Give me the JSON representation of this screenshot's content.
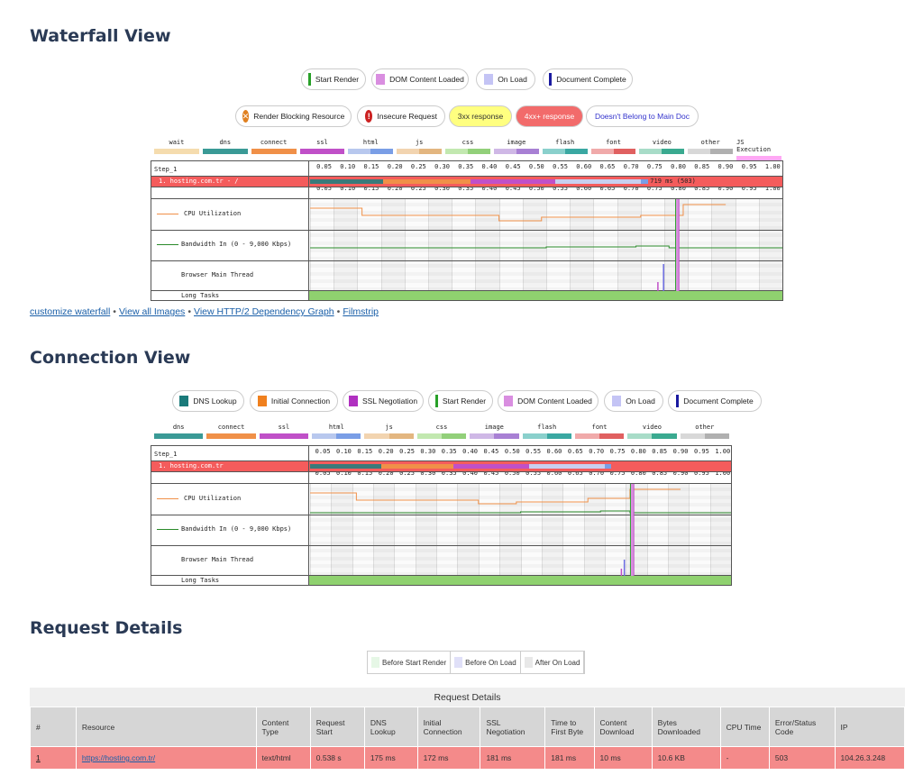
{
  "waterfall": {
    "title": "Waterfall View",
    "markers": [
      {
        "label": "Start Render",
        "color": "#28a028",
        "kind": "line"
      },
      {
        "label": "DOM Content Loaded",
        "color": "#d98ee0",
        "kind": "box"
      },
      {
        "label": "On Load",
        "color": "#c4c4f5",
        "kind": "box"
      },
      {
        "label": "Document Complete",
        "color": "#1a1aa0",
        "kind": "line"
      }
    ],
    "flags": [
      {
        "label": "Render Blocking Resource",
        "icon": "render-blocking-icon",
        "icon_char": "✕",
        "icon_color": "#e08020",
        "bg": "#ffffff",
        "text_color": "#222222"
      },
      {
        "label": "Insecure Request",
        "icon": "warning-icon",
        "icon_char": "!",
        "icon_color": "#cc2222",
        "bg": "#ffffff",
        "text_color": "#222222"
      },
      {
        "label": "3xx response",
        "bg": "#ffff80",
        "text_color": "#333333"
      },
      {
        "label": "4xx+ response",
        "bg": "#f26b6b",
        "text_color": "#ffffff"
      },
      {
        "label": "Doesn't Belong to Main Doc",
        "bg": "#ffffff",
        "text_color": "#3333cc"
      }
    ],
    "legend": [
      {
        "name": "wait",
        "c1": "#f5dcae",
        "c2": "#f5dcae"
      },
      {
        "name": "dns",
        "c1": "#3a9a96",
        "c2": "#3a9a96"
      },
      {
        "name": "connect",
        "c1": "#f09048",
        "c2": "#f09048"
      },
      {
        "name": "ssl",
        "c1": "#c050c8",
        "c2": "#c050c8"
      },
      {
        "name": "html",
        "c1": "#b8c8ee",
        "c2": "#7a9ee6"
      },
      {
        "name": "js",
        "c1": "#f2d4b0",
        "c2": "#e3b680"
      },
      {
        "name": "css",
        "c1": "#c2e8b0",
        "c2": "#92d07a"
      },
      {
        "name": "image",
        "c1": "#cfb8e6",
        "c2": "#a880d4"
      },
      {
        "name": "flash",
        "c1": "#8ad0cc",
        "c2": "#3aa8a2"
      },
      {
        "name": "font",
        "c1": "#f0aaaa",
        "c2": "#e06060"
      },
      {
        "name": "video",
        "c1": "#a8dcc8",
        "c2": "#3aaa90"
      },
      {
        "name": "other",
        "c1": "#d8d8d8",
        "c2": "#b0b0b0"
      },
      {
        "name": "JS Execution",
        "c1": "#ffa8f4",
        "c2": "#ffa8f4"
      }
    ],
    "step_label": "Step_1",
    "ticks": [
      "0.05",
      "0.10",
      "0.15",
      "0.20",
      "0.25",
      "0.30",
      "0.35",
      "0.40",
      "0.45",
      "0.50",
      "0.55",
      "0.60",
      "0.65",
      "0.70",
      "0.75",
      "0.80",
      "0.85",
      "0.90",
      "0.95",
      "1.00"
    ],
    "request_row": "1. hosting.com.tr - /",
    "request_timing": "719 ms (503)",
    "cpu_label": "CPU Utilization",
    "bandwidth_label": "Bandwidth In (0 - 9,000 Kbps)",
    "main_thread_label": "Browser Main Thread",
    "long_tasks_label": "Long Tasks"
  },
  "links": [
    "customize waterfall",
    "View all Images",
    "View HTTP/2 Dependency Graph",
    "Filmstrip"
  ],
  "links_separator": "•",
  "connection": {
    "title": "Connection View",
    "markers": [
      {
        "label": "DNS Lookup",
        "color": "#1a7a7a",
        "kind": "box"
      },
      {
        "label": "Initial Connection",
        "color": "#f0801e",
        "kind": "box"
      },
      {
        "label": "SSL Negotiation",
        "color": "#b030c0",
        "kind": "box"
      },
      {
        "label": "Start Render",
        "color": "#28a028",
        "kind": "line"
      },
      {
        "label": "DOM Content Loaded",
        "color": "#d98ee0",
        "kind": "box"
      },
      {
        "label": "On Load",
        "color": "#c4c4f5",
        "kind": "box"
      },
      {
        "label": "Document Complete",
        "color": "#1a1aa0",
        "kind": "line"
      }
    ],
    "legend": [
      {
        "name": "dns",
        "c1": "#3a9a96",
        "c2": "#3a9a96"
      },
      {
        "name": "connect",
        "c1": "#f09048",
        "c2": "#f09048"
      },
      {
        "name": "ssl",
        "c1": "#c050c8",
        "c2": "#c050c8"
      },
      {
        "name": "html",
        "c1": "#b8c8ee",
        "c2": "#7a9ee6"
      },
      {
        "name": "js",
        "c1": "#f2d4b0",
        "c2": "#e3b680"
      },
      {
        "name": "css",
        "c1": "#c2e8b0",
        "c2": "#92d07a"
      },
      {
        "name": "image",
        "c1": "#cfb8e6",
        "c2": "#a880d4"
      },
      {
        "name": "flash",
        "c1": "#8ad0cc",
        "c2": "#3aa8a2"
      },
      {
        "name": "font",
        "c1": "#f0aaaa",
        "c2": "#e06060"
      },
      {
        "name": "video",
        "c1": "#a8dcc8",
        "c2": "#3aaa90"
      },
      {
        "name": "other",
        "c1": "#d8d8d8",
        "c2": "#b0b0b0"
      }
    ],
    "step_label": "Step_1",
    "request_row": "1. hosting.com.tr",
    "cpu_label": "CPU Utilization",
    "bandwidth_label": "Bandwidth In (0 - 9,000 Kbps)",
    "main_thread_label": "Browser Main Thread",
    "long_tasks_label": "Long Tasks"
  },
  "request_details": {
    "title": "Request Details",
    "legend": [
      {
        "label": "Before Start Render",
        "color": "#e6f7e6"
      },
      {
        "label": "Before On Load",
        "color": "#e0e0f8"
      },
      {
        "label": "After On Load",
        "color": "#e8e8e8"
      }
    ],
    "table_caption": "Request Details",
    "columns": [
      "#",
      "Resource",
      "Content Type",
      "Request Start",
      "DNS Lookup",
      "Initial Connection",
      "SSL Negotiation",
      "Time to First Byte",
      "Content Download",
      "Bytes Downloaded",
      "CPU Time",
      "Error/Status Code",
      "IP"
    ],
    "rows": [
      [
        "1",
        "https://hosting.com.tr/",
        "text/html",
        "0.538 s",
        "175 ms",
        "172 ms",
        "181 ms",
        "181 ms",
        "10 ms",
        "10.6 KB",
        "-",
        "503",
        "104.26.3.248"
      ]
    ],
    "row_color": "#f48a8a"
  }
}
